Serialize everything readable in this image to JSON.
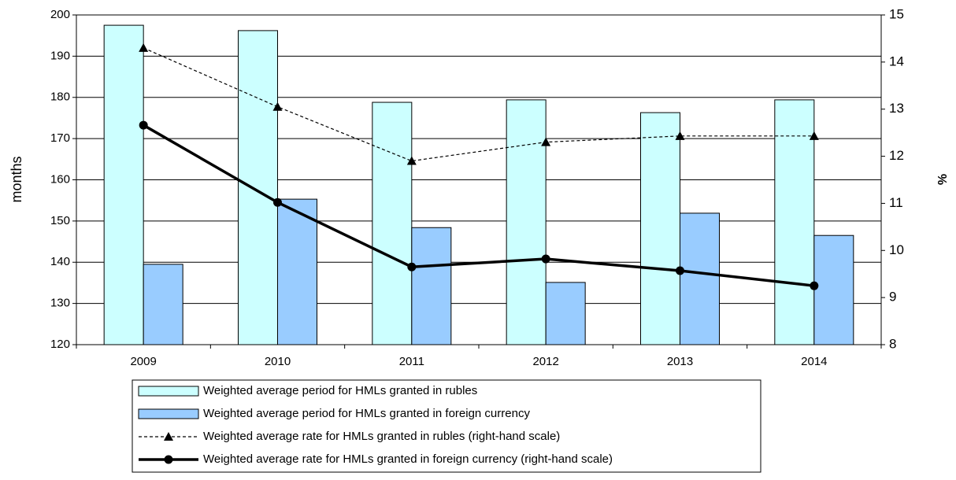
{
  "chart_data": {
    "type": "bar_line",
    "categories": [
      "2009",
      "2010",
      "2011",
      "2012",
      "2013",
      "2014"
    ],
    "ylabel": "months",
    "y2label": "%",
    "ylim": [
      120,
      200
    ],
    "yticks": [
      120,
      130,
      140,
      150,
      160,
      170,
      180,
      190,
      200
    ],
    "y2lim": [
      8,
      15
    ],
    "y2ticks": [
      8,
      9,
      10,
      11,
      12,
      13,
      14,
      15
    ],
    "grid": true,
    "series": [
      {
        "name": "Weighted average period for HMLs granted in rubles",
        "type": "bar",
        "color": "#ccffff",
        "values": [
          197.5,
          196.2,
          178.8,
          179.4,
          176.3,
          179.4
        ]
      },
      {
        "name": "Weighted average period for HMLs granted in foreign currency",
        "type": "bar",
        "color": "#99ccff",
        "values": [
          139.5,
          155.3,
          148.4,
          135.1,
          151.9,
          146.5
        ]
      },
      {
        "name": "Weighted average rate for HMLs granted in rubles (right-hand scale)",
        "type": "line",
        "axis": "y2",
        "color": "#000000",
        "dashed": true,
        "marker": "triangle",
        "values": [
          14.3,
          13.05,
          11.9,
          12.3,
          12.43,
          12.43
        ]
      },
      {
        "name": "Weighted average rate for HMLs granted in foreign currency (right-hand scale)",
        "type": "line",
        "axis": "y2",
        "color": "#000000",
        "dashed": false,
        "marker": "circle",
        "values": [
          12.66,
          11.02,
          9.65,
          9.82,
          9.57,
          9.25
        ]
      }
    ]
  }
}
